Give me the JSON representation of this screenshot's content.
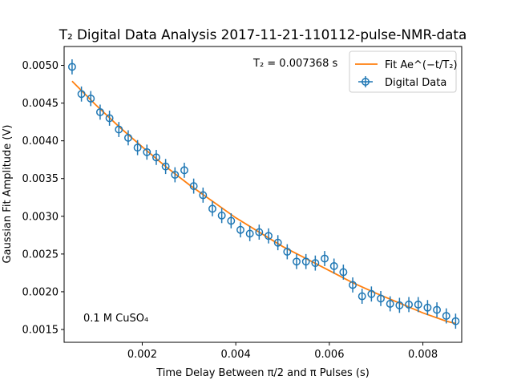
{
  "chart_data": {
    "type": "scatter",
    "title": "T₂ Digital Data Analysis 2017-11-21-110112-pulse-NMR-data",
    "xlabel": "Time Delay Between π/2 and π Pulses (s)",
    "ylabel": "Gaussian Fit Amplitude (V)",
    "xlim": [
      0.00033,
      0.00883
    ],
    "ylim": [
      0.00133,
      0.00525
    ],
    "xticks": [
      0.002,
      0.004,
      0.006,
      0.008
    ],
    "xtick_labels": [
      "0.002",
      "0.004",
      "0.006",
      "0.008"
    ],
    "yticks": [
      0.0015,
      0.002,
      0.0025,
      0.003,
      0.0035,
      0.004,
      0.0045,
      0.005
    ],
    "ytick_labels": [
      "0.0015",
      "0.0020",
      "0.0025",
      "0.0030",
      "0.0035",
      "0.0040",
      "0.0045",
      "0.0050"
    ],
    "grid": false,
    "legend_position": "top-right",
    "colors": {
      "data": "#1f77b4",
      "fit": "#ff7f0e"
    },
    "annotations": {
      "t2_text": "T₂ = 0.007368 s",
      "sample_text": "0.1 M CuSO₄"
    },
    "series": [
      {
        "name": "Digital Data",
        "kind": "errorbar",
        "x": [
          0.0005,
          0.0007,
          0.0009,
          0.0011,
          0.0013,
          0.0015,
          0.0017,
          0.0019,
          0.0021,
          0.0023,
          0.0025,
          0.0027,
          0.0029,
          0.0031,
          0.0033,
          0.0035,
          0.0037,
          0.0039,
          0.0041,
          0.0043,
          0.0045,
          0.0047,
          0.0049,
          0.0051,
          0.0053,
          0.0055,
          0.0057,
          0.0059,
          0.0061,
          0.0063,
          0.0065,
          0.0067,
          0.0069,
          0.0071,
          0.0073,
          0.0075,
          0.0077,
          0.0079,
          0.0081,
          0.0083,
          0.0085,
          0.0087
        ],
        "y": [
          0.00498,
          0.00462,
          0.00456,
          0.00438,
          0.0043,
          0.00415,
          0.00404,
          0.00391,
          0.00385,
          0.00378,
          0.00366,
          0.00355,
          0.00361,
          0.0034,
          0.00328,
          0.0031,
          0.00301,
          0.00294,
          0.00282,
          0.00277,
          0.00279,
          0.00274,
          0.00265,
          0.00253,
          0.0024,
          0.0024,
          0.00238,
          0.00244,
          0.00234,
          0.00226,
          0.00209,
          0.00194,
          0.00197,
          0.00191,
          0.00184,
          0.00182,
          0.00183,
          0.00183,
          0.00179,
          0.00176,
          0.00168,
          0.00161
        ],
        "yerr": 0.0001
      },
      {
        "name": "Fit Ae^(−t/T₂)",
        "kind": "line",
        "x": [
          0.0005,
          0.001,
          0.0015,
          0.002,
          0.0025,
          0.003,
          0.0035,
          0.004,
          0.0045,
          0.005,
          0.0055,
          0.006,
          0.0065,
          0.007,
          0.0075,
          0.008,
          0.0085,
          0.0087
        ],
        "y": [
          0.00479,
          0.00448,
          0.00419,
          0.00392,
          0.00366,
          0.00342,
          0.0032,
          0.00298,
          0.00279,
          0.0026,
          0.00244,
          0.00228,
          0.00212,
          0.00198,
          0.00185,
          0.00172,
          0.00161,
          0.00158
        ]
      }
    ]
  }
}
